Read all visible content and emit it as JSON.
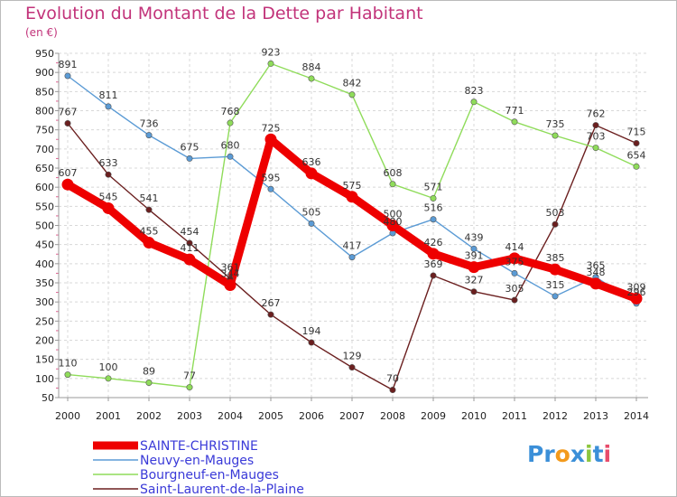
{
  "chart_data": {
    "type": "line",
    "title": "Evolution du Montant de la Dette par Habitant",
    "subtitle": "(en €)",
    "x": [
      "2000",
      "2001",
      "2002",
      "2003",
      "2004",
      "2005",
      "2006",
      "2007",
      "2008",
      "2009",
      "2010",
      "2011",
      "2012",
      "2013",
      "2014"
    ],
    "ylim": [
      50,
      950
    ],
    "yticks": [
      50,
      100,
      150,
      200,
      250,
      300,
      350,
      400,
      450,
      500,
      550,
      600,
      650,
      700,
      750,
      800,
      850,
      900,
      950
    ],
    "grid": true,
    "legend_position": "bottom-left",
    "series": [
      {
        "name": "SAINTE-CHRISTINE",
        "color": "#ee0000",
        "values": [
          607,
          545,
          455,
          411,
          344,
          725,
          636,
          575,
          500,
          426,
          391,
          414,
          385,
          348,
          309
        ]
      },
      {
        "name": "Neuvy-en-Mauges",
        "color": "#5b9bd5",
        "values": [
          891,
          811,
          736,
          675,
          680,
          595,
          505,
          417,
          480,
          516,
          439,
          375,
          315,
          365,
          296
        ]
      },
      {
        "name": "Bourgneuf-en-Mauges",
        "color": "#8fdc5a",
        "values": [
          110,
          100,
          89,
          77,
          768,
          923,
          884,
          842,
          608,
          571,
          823,
          771,
          735,
          703,
          654
        ]
      },
      {
        "name": "Saint-Laurent-de-la-Plaine",
        "color": "#6b1f1f",
        "values": [
          767,
          633,
          541,
          454,
          361,
          267,
          194,
          129,
          70,
          369,
          327,
          305,
          503,
          762,
          715
        ]
      }
    ]
  },
  "brand": {
    "p1": "Pr",
    "o": "o",
    "x": "x",
    "i1": "i",
    "t": "t",
    "i2": "i"
  }
}
